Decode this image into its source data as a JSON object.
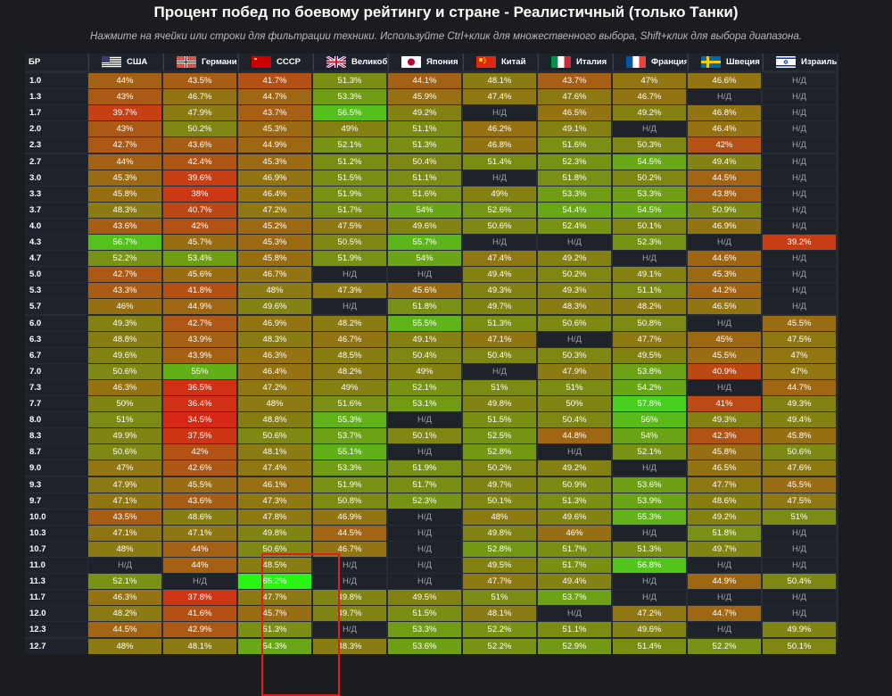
{
  "title": "Процент побед по боевому рейтингу и стране - Реалистичный (только Танки)",
  "subtitle": "Нажмите на ячейки или строки для фильтрации техники. Используйте Ctrl+клик для множественного выбора, Shift+клик для выбора диапазона.",
  "br_header": "БР",
  "na_label": "Н/Д",
  "countries": [
    {
      "label": "США",
      "flag": "usa-flag-icon"
    },
    {
      "label": "Германия",
      "flag": "germany-flag-icon"
    },
    {
      "label": "СССР",
      "flag": "ussr-flag-icon"
    },
    {
      "label": "Великоб...",
      "flag": "uk-flag-icon"
    },
    {
      "label": "Япония",
      "flag": "japan-flag-icon"
    },
    {
      "label": "Китай",
      "flag": "china-flag-icon"
    },
    {
      "label": "Италия",
      "flag": "italy-flag-icon"
    },
    {
      "label": "Франция",
      "flag": "france-flag-icon"
    },
    {
      "label": "Швеция",
      "flag": "sweden-flag-icon"
    },
    {
      "label": "Израиль",
      "flag": "israel-flag-icon"
    }
  ],
  "rows": [
    {
      "br": "1.0",
      "values": [
        44,
        43.5,
        41.7,
        51.3,
        44.1,
        48.1,
        43.7,
        47,
        46.6,
        null
      ]
    },
    {
      "br": "1.3",
      "values": [
        43,
        46.7,
        44.7,
        53.3,
        45.9,
        47.4,
        47.6,
        46.7,
        null,
        null
      ]
    },
    {
      "br": "1.7",
      "values": [
        39.7,
        47.9,
        43.7,
        56.5,
        49.2,
        null,
        46.5,
        49.2,
        46.8,
        null
      ]
    },
    {
      "br": "2.0",
      "values": [
        43,
        50.2,
        45.3,
        49,
        51.1,
        46.2,
        49.1,
        null,
        46.4,
        null
      ]
    },
    {
      "br": "2.3",
      "values": [
        42.7,
        43.6,
        44.9,
        52.1,
        51.3,
        46.8,
        51.6,
        50.3,
        42,
        null
      ]
    },
    {
      "br": "2.7",
      "values": [
        44,
        42.4,
        45.3,
        51.2,
        50.4,
        51.4,
        52.3,
        54.5,
        49.4,
        null
      ]
    },
    {
      "br": "3.0",
      "values": [
        45.3,
        39.6,
        46.9,
        51.5,
        51.1,
        null,
        51.8,
        50.2,
        44.5,
        null
      ]
    },
    {
      "br": "3.3",
      "values": [
        45.8,
        38,
        46.4,
        51.9,
        51.6,
        49,
        53.3,
        53.3,
        43.8,
        null
      ]
    },
    {
      "br": "3.7",
      "values": [
        48.3,
        40.7,
        47.2,
        51.7,
        54,
        52.6,
        54.4,
        54.5,
        50.9,
        null
      ]
    },
    {
      "br": "4.0",
      "values": [
        43.6,
        42,
        45.2,
        47.5,
        49.6,
        50.6,
        52.4,
        50.1,
        46.9,
        null
      ]
    },
    {
      "br": "4.3",
      "values": [
        56.7,
        45.7,
        45.3,
        50.5,
        55.7,
        null,
        null,
        52.3,
        null,
        39.2
      ]
    },
    {
      "br": "4.7",
      "values": [
        52.2,
        53.4,
        45.8,
        51.9,
        54,
        47.4,
        49.2,
        null,
        44.6,
        null
      ]
    },
    {
      "br": "5.0",
      "values": [
        42.7,
        45.6,
        46.7,
        null,
        null,
        49.4,
        50.2,
        49.1,
        45.3,
        null
      ]
    },
    {
      "br": "5.3",
      "values": [
        43.3,
        41.8,
        48,
        47.3,
        45.6,
        49.3,
        49.3,
        51.1,
        44.2,
        null
      ]
    },
    {
      "br": "5.7",
      "values": [
        46,
        44.9,
        49.6,
        null,
        51.8,
        49.7,
        48.3,
        48.2,
        46.5,
        null
      ]
    },
    {
      "br": "6.0",
      "values": [
        49.3,
        42.7,
        46.9,
        48.2,
        55.5,
        51.3,
        50.6,
        50.8,
        null,
        45.5
      ]
    },
    {
      "br": "6.3",
      "values": [
        48.8,
        43.9,
        48.3,
        46.7,
        49.1,
        47.1,
        null,
        47.7,
        45,
        47.5
      ]
    },
    {
      "br": "6.7",
      "values": [
        49.6,
        43.9,
        46.3,
        48.5,
        50.4,
        50.4,
        50.3,
        49.5,
        45.5,
        47
      ]
    },
    {
      "br": "7.0",
      "values": [
        50.6,
        55,
        46.4,
        48.2,
        49,
        null,
        47.9,
        53.8,
        40.9,
        47
      ]
    },
    {
      "br": "7.3",
      "values": [
        46.3,
        36.5,
        47.2,
        49,
        52.1,
        51,
        51,
        54.2,
        null,
        44.7
      ]
    },
    {
      "br": "7.7",
      "values": [
        50,
        36.4,
        48,
        51.6,
        53.1,
        49.8,
        50,
        57.8,
        41,
        49.3
      ]
    },
    {
      "br": "8.0",
      "values": [
        51,
        34.5,
        48.8,
        55.3,
        null,
        51.5,
        50.4,
        56,
        49.3,
        49.4
      ]
    },
    {
      "br": "8.3",
      "values": [
        49.9,
        37.5,
        50.6,
        53.7,
        50.1,
        52.5,
        44.8,
        54,
        42.3,
        45.8
      ]
    },
    {
      "br": "8.7",
      "values": [
        50.6,
        42,
        48.1,
        55.1,
        null,
        52.8,
        null,
        52.1,
        45.8,
        50.6
      ]
    },
    {
      "br": "9.0",
      "values": [
        47,
        42.6,
        47.4,
        53.3,
        51.9,
        50.2,
        49.2,
        null,
        46.5,
        47.6
      ]
    },
    {
      "br": "9.3",
      "values": [
        47.9,
        45.5,
        46.1,
        51.9,
        51.7,
        49.7,
        50.9,
        53.6,
        47.7,
        45.5
      ]
    },
    {
      "br": "9.7",
      "values": [
        47.1,
        43.6,
        47.3,
        50.8,
        52.3,
        50.1,
        51.3,
        53.9,
        48.6,
        47.5
      ]
    },
    {
      "br": "10.0",
      "values": [
        43.5,
        48.6,
        47.8,
        46.9,
        null,
        48,
        49.6,
        55.3,
        49.2,
        51
      ]
    },
    {
      "br": "10.3",
      "values": [
        47.1,
        47.1,
        49.8,
        44.5,
        null,
        49.8,
        46,
        null,
        51.8,
        null
      ]
    },
    {
      "br": "10.7",
      "values": [
        48,
        44,
        50.6,
        46.7,
        null,
        52.8,
        51.7,
        51.3,
        49.7,
        null
      ]
    },
    {
      "br": "11.0",
      "values": [
        null,
        44,
        48.5,
        null,
        null,
        49.5,
        51.7,
        56.8,
        null,
        null
      ]
    },
    {
      "br": "11.3",
      "values": [
        52.1,
        null,
        65.2,
        null,
        null,
        47.7,
        49.4,
        null,
        44.9,
        50.4
      ]
    },
    {
      "br": "11.7",
      "values": [
        46.3,
        37.8,
        47.7,
        49.8,
        49.5,
        51,
        53.7,
        null,
        null,
        null
      ]
    },
    {
      "br": "12.0",
      "values": [
        48.2,
        41.6,
        45.7,
        49.7,
        51.5,
        48.1,
        null,
        47.2,
        44.7,
        null
      ]
    },
    {
      "br": "12.3",
      "values": [
        44.5,
        42.9,
        51.3,
        null,
        53.3,
        52.2,
        51.1,
        49.6,
        null,
        49.9
      ]
    },
    {
      "br": "12.7",
      "values": [
        48,
        48.1,
        54.3,
        48.3,
        53.6,
        52.2,
        52.9,
        51.4,
        52.2,
        50.1
      ]
    }
  ]
}
